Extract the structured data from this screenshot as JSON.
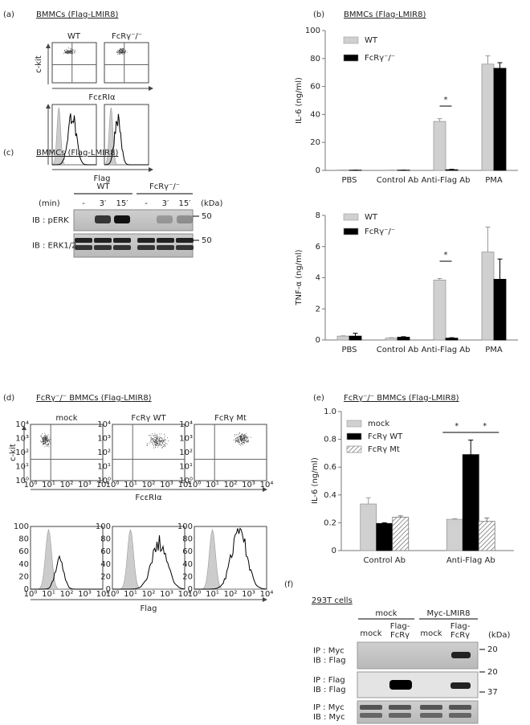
{
  "chart_data": [
    {
      "type": "bar",
      "panel": "(b)",
      "title": "BMMCs (Flag-LMIR8)",
      "y_label": "IL-6 (ng/ml)",
      "categories": [
        "PBS",
        "Control Ab",
        "Anti-Flag Ab",
        "PMA"
      ],
      "series": [
        {
          "name": "WT",
          "color": "#d0d0d0",
          "values": [
            0.3,
            0.2,
            35,
            76
          ],
          "errors": [
            0,
            0,
            2,
            6
          ]
        },
        {
          "name": "FcRγ⁻/⁻",
          "color": "#000000",
          "values": [
            0.2,
            0.2,
            0.5,
            73
          ],
          "errors": [
            0,
            0,
            0.3,
            4
          ]
        }
      ],
      "ylim": [
        0,
        100
      ],
      "yticks": [
        0,
        20,
        40,
        60,
        80,
        100
      ],
      "annotations": [
        "*"
      ]
    },
    {
      "type": "bar",
      "y_label": "TNF-α (ng/ml)",
      "categories": [
        "PBS",
        "Control Ab",
        "Anti-Flag Ab",
        "PMA"
      ],
      "series": [
        {
          "name": "WT",
          "color": "#d0d0d0",
          "values": [
            0.25,
            0.12,
            3.85,
            5.65
          ],
          "errors": [
            0.02,
            0.03,
            0.1,
            1.6
          ]
        },
        {
          "name": "FcRγ⁻/⁻",
          "color": "#000000",
          "values": [
            0.25,
            0.18,
            0.12,
            3.9
          ],
          "errors": [
            0.18,
            0.03,
            0.03,
            1.3
          ]
        }
      ],
      "ylim": [
        0,
        8
      ],
      "yticks": [
        0,
        2,
        4,
        6,
        8
      ],
      "annotations": [
        "*"
      ]
    },
    {
      "type": "bar",
      "panel": "(e)",
      "title": "FcRγ⁻/⁻ BMMCs (Flag-LMIR8)",
      "y_label": "IL-6 (ng/ml)",
      "categories": [
        "Control Ab",
        "Anti-Flag Ab"
      ],
      "series": [
        {
          "name": "mock",
          "color": "#d0d0d0",
          "values": [
            0.335,
            0.225
          ],
          "errors": [
            0.045,
            0.005
          ]
        },
        {
          "name": "FcRγ WT",
          "color": "#000000",
          "values": [
            0.195,
            0.69
          ],
          "errors": [
            0.005,
            0.105
          ]
        },
        {
          "name": "FcRγ Mt",
          "color": "#ffffff",
          "hatch": true,
          "values": [
            0.24,
            0.21
          ],
          "errors": [
            0.01,
            0.025
          ]
        }
      ],
      "ylim": [
        0,
        1
      ],
      "yticks": [
        0,
        0.2,
        0.4,
        0.6,
        0.8,
        {
          "value": 1,
          "label": "1.0"
        }
      ],
      "annotations": [
        "*",
        "*"
      ]
    }
  ],
  "panels": {
    "a": {
      "label": "(a)",
      "title": "BMMCs (Flag-LMIR8)",
      "columns": [
        "WT",
        "FcRγ⁻/⁻"
      ],
      "y_axis": "c-kit",
      "x_axis": "FcεRIα",
      "histogram_axis": "Flag"
    },
    "c": {
      "label": "(c)",
      "title": "BMMCs (Flag-LMIR8)",
      "groups": [
        "WT",
        "FcRγ⁻/⁻"
      ],
      "time_unit": "(min)",
      "times": [
        "-",
        "3′",
        "15′"
      ],
      "mw_unit": "(kDa)",
      "blots": [
        {
          "label": "IB : pERK",
          "marker": "50"
        },
        {
          "label": "IB : ERK1/2",
          "marker": "50"
        }
      ]
    },
    "d": {
      "label": "(d)",
      "title": "FcRγ⁻/⁻ BMMCs (Flag-LMIR8)",
      "columns": [
        "mock",
        "FcRγ WT",
        "FcRγ Mt"
      ],
      "y_axis": "c-kit",
      "x_axis": "FcεRIα",
      "histogram_axis": "Flag",
      "log_ticks": [
        "10⁰",
        "10¹",
        "10²",
        "10³",
        "10⁴"
      ],
      "count_ticks": [
        "0",
        "20",
        "40",
        "60",
        "80",
        "100"
      ]
    },
    "f": {
      "label": "(f)",
      "title": "293T cells",
      "groups": [
        "mock",
        "Myc-LMIR8"
      ],
      "lanes": [
        [
          "mock"
        ],
        [
          "Flag-",
          "FcRγ"
        ]
      ],
      "mw_unit": "(kDa)",
      "blots": [
        {
          "lines": [
            "IP : Myc",
            "IB : Flag"
          ]
        },
        {
          "lines": [
            "IP : Flag",
            "IB : Flag"
          ]
        },
        {
          "lines": [
            "IP : Myc",
            "IB : Myc"
          ]
        }
      ],
      "markers": [
        "20",
        "20",
        "37"
      ]
    }
  }
}
